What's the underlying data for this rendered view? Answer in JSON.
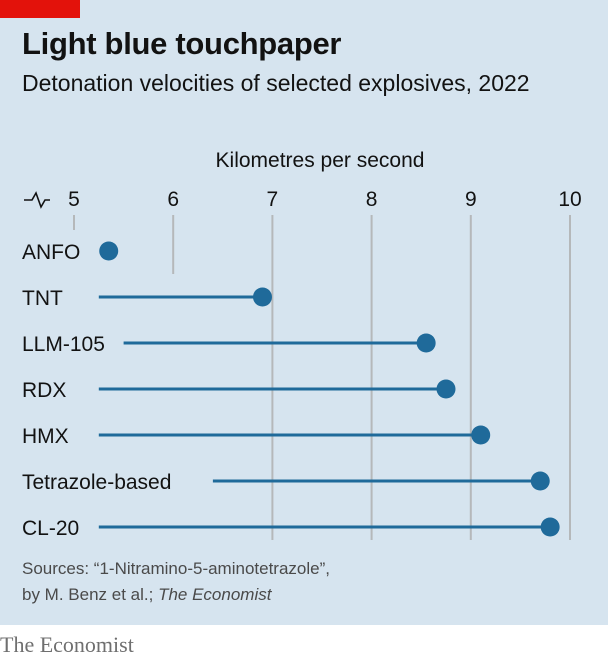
{
  "title": "Light blue touchpaper",
  "subtitle": "Detonation velocities of selected explosives, 2022",
  "source_prefix": "Sources: “1-Nitramino-5-aminotetrazole”,",
  "source_line2": "by M. Benz et al.; ",
  "source_italic": "The Economist",
  "footer": "The Economist",
  "colors": {
    "background": "#d6e4ef",
    "accent": "#e3120b",
    "series": "#1f6a9a",
    "grid": "#b5b8ba"
  },
  "chart_data": {
    "type": "range-dot",
    "xlabel": "Kilometres per second",
    "xlim": [
      5,
      10
    ],
    "xticks": [
      5,
      6,
      7,
      8,
      9,
      10
    ],
    "axis_break": true,
    "grid": "vertical",
    "items": [
      {
        "label": "ANFO",
        "low": null,
        "high": 5.35
      },
      {
        "label": "TNT",
        "low": 5.25,
        "high": 6.9
      },
      {
        "label": "LLM-105",
        "low": 5.5,
        "high": 8.55
      },
      {
        "label": "RDX",
        "low": 5.25,
        "high": 8.75
      },
      {
        "label": "HMX",
        "low": 5.25,
        "high": 9.1
      },
      {
        "label": "Tetrazole-based",
        "low": 6.4,
        "high": 9.7
      },
      {
        "label": "CL-20",
        "low": 5.25,
        "high": 9.8
      }
    ]
  }
}
